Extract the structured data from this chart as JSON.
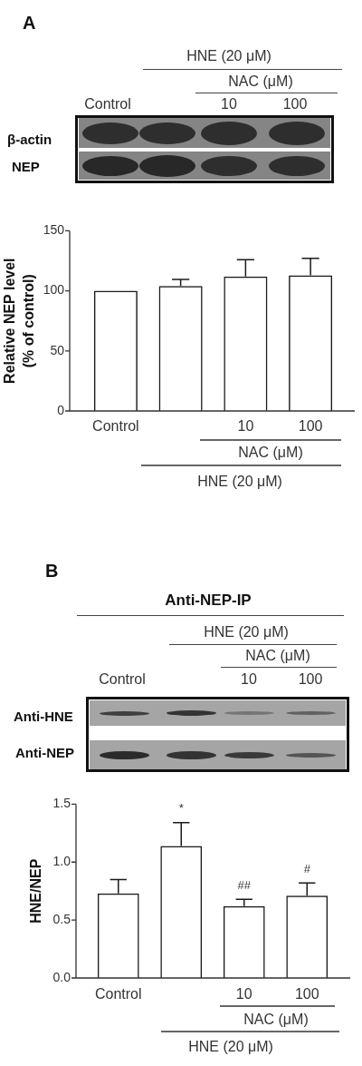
{
  "chart_data": [
    {
      "type": "bar",
      "title": "A",
      "categories": [
        "Control",
        null,
        "10",
        "100"
      ],
      "values": [
        100,
        104,
        112,
        113
      ],
      "errors": [
        null,
        5.5,
        14,
        14
      ],
      "color": "#1a1a1a",
      "ylabel": "Relative NEP level (% of control)",
      "ylim": [
        0,
        150
      ],
      "yticks": [
        0,
        50,
        100,
        150
      ],
      "annotations": [
        "NAC (μM)",
        "HNE (20 μM)",
        "β-actin",
        "NEP"
      ]
    },
    {
      "type": "bar",
      "title": "B",
      "subtitle": "Anti-NEP-IP",
      "categories": [
        "Control",
        null,
        "10",
        "100"
      ],
      "values": [
        0.73,
        1.14,
        0.62,
        0.71
      ],
      "errors": [
        0.12,
        0.2,
        0.06,
        0.11
      ],
      "value_labels": [
        null,
        "*",
        "##",
        "#"
      ],
      "color": "#1a1a1a",
      "ylabel": "HNE/NEP",
      "ylim": [
        0,
        1.5
      ],
      "yticks": [
        {
          "value": 0,
          "label": "0.0"
        },
        {
          "value": 0.5,
          "label": "0.5"
        },
        {
          "value": 1,
          "label": "1.0"
        },
        {
          "value": 1.5,
          "label": "1.5"
        }
      ],
      "annotations": [
        "NAC (μM)",
        "HNE (20 μM)",
        "Anti-HNE",
        "Anti-NEP"
      ]
    }
  ]
}
